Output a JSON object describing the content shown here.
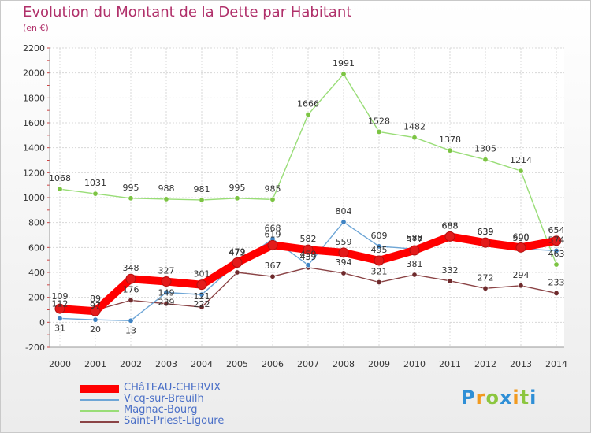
{
  "header": {
    "title": "Evolution du Montant de la Dette par Habitant",
    "subtitle": "(en €)"
  },
  "logo": {
    "text": "Proxiti",
    "letters": [
      "P",
      "r",
      "o",
      "x",
      "i",
      "t",
      "i"
    ],
    "letter_colors": [
      "#2f8fd6",
      "#f29a1f",
      "#8cc63f",
      "#2f8fd6",
      "#f29a1f",
      "#8cc63f",
      "#2f8fd6"
    ]
  },
  "chart_data": {
    "type": "line",
    "title": "Evolution du Montant de la Dette par Habitant",
    "subtitle": "(en €)",
    "xlabel": "",
    "ylabel": "",
    "x": [
      2000,
      2001,
      2002,
      2003,
      2004,
      2005,
      2006,
      2007,
      2008,
      2009,
      2010,
      2011,
      2012,
      2013,
      2014
    ],
    "x_tick_labels": [
      "2000",
      "2001",
      "2002",
      "2003",
      "2004",
      "2005",
      "2006",
      "2007",
      "2008",
      "2009",
      "2010",
      "2011",
      "2012",
      "2013",
      "2014"
    ],
    "ylim": [
      -200,
      2200
    ],
    "y_ticks": [
      -200,
      0,
      200,
      400,
      600,
      800,
      1000,
      1200,
      1400,
      1600,
      1800,
      2000,
      2200
    ],
    "y_tick_labels": [
      "-200",
      "0",
      "200",
      "400",
      "600",
      "800",
      "1000",
      "1200",
      "1400",
      "1600",
      "1800",
      "2000",
      "2200"
    ],
    "grid": true,
    "legend_position": "bottom-left",
    "series": [
      {
        "name": "CHâTEAU-CHERVIX",
        "color": "#ff0000",
        "marker_color": "#e31b1b",
        "style": "thick",
        "values": [
          109,
          89,
          348,
          327,
          301,
          479,
          619,
          582,
          559,
          495,
          577,
          688,
          639,
          600,
          654
        ],
        "labels": [
          "109",
          "89",
          "348",
          "327",
          "301",
          "479",
          "619",
          "582",
          "559",
          "495",
          "577",
          "688",
          "639",
          "600",
          "654"
        ]
      },
      {
        "name": "Vicq-sur-Breuilh",
        "color": "#6ea6d6",
        "marker_color": "#3f83c3",
        "style": "thin",
        "values": [
          31,
          20,
          13,
          239,
          222,
          472,
          668,
          459,
          804,
          609,
          588,
          688,
          639,
          590,
          574
        ],
        "labels": [
          "31",
          "20",
          "13",
          "239",
          "222",
          "472",
          "668",
          "459",
          "804",
          "609",
          "588",
          "688",
          "639",
          "590",
          "574"
        ]
      },
      {
        "name": "Magnac-Bourg",
        "color": "#99dd77",
        "marker_color": "#7cc443",
        "style": "thin",
        "values": [
          1068,
          1031,
          995,
          988,
          981,
          995,
          985,
          1666,
          1991,
          1528,
          1482,
          1378,
          1305,
          1214,
          463
        ],
        "labels": [
          "1068",
          "1031",
          "995",
          "988",
          "981",
          "995",
          "985",
          "1666",
          "1991",
          "1528",
          "1482",
          "1378",
          "1305",
          "1214",
          "463"
        ]
      },
      {
        "name": "Saint-Priest-Ligoure",
        "color": "#8b4446",
        "marker_color": "#6e2a2c",
        "style": "thin",
        "values": [
          112,
          97,
          176,
          149,
          121,
          400,
          367,
          439,
          394,
          321,
          381,
          332,
          272,
          294,
          233
        ],
        "labels": [
          "112",
          "97",
          "176",
          "149",
          "121",
          "",
          "367",
          "439",
          "394",
          "321",
          "381",
          "332",
          "272",
          "294",
          "233"
        ]
      }
    ]
  }
}
